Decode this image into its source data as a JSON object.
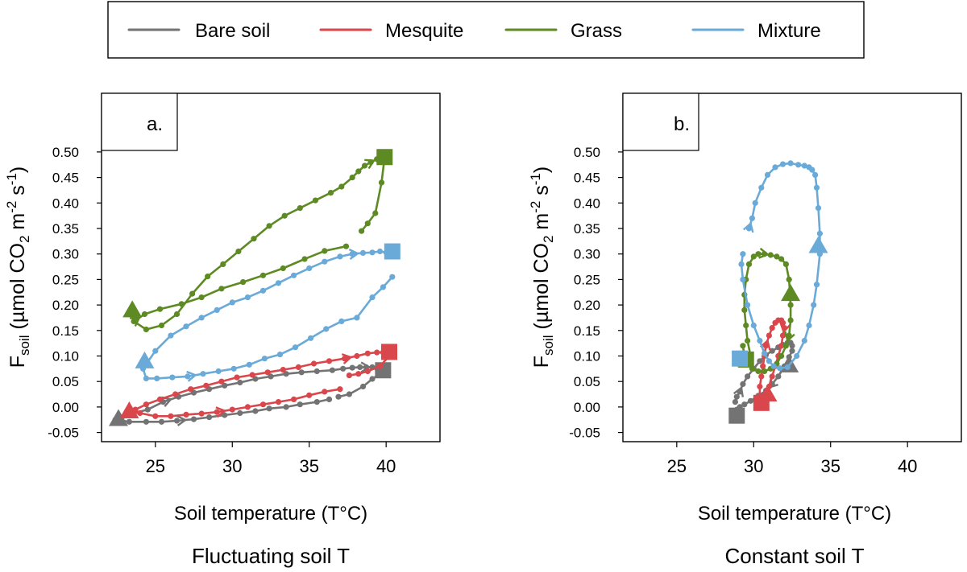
{
  "legend": [
    {
      "label": "Bare soil",
      "color": "#737373"
    },
    {
      "label": "Mesquite",
      "color": "#d9464b"
    },
    {
      "label": "Grass",
      "color": "#5d8a22"
    },
    {
      "label": "Mixture",
      "color": "#6aaad8"
    }
  ],
  "ylabel": {
    "main": "F",
    "sub": "soil",
    "unit_pre": " (µmol CO",
    "two": "2",
    "unit_m": " m",
    "exp_m": "-2",
    "unit_s": " s",
    "exp_s": "-1",
    "close": ")"
  },
  "chart_data": [
    {
      "type": "line",
      "panel_label": "a.",
      "caption": "Fluctuating soil T",
      "xlabel": "Soil temperature (T°C)",
      "xlim": [
        21.5,
        43.5
      ],
      "ylim": [
        -0.068,
        0.615
      ],
      "xticks": [
        "25",
        "30",
        "35",
        "40"
      ],
      "yticks": [
        "-0.05",
        "0.00",
        "0.05",
        "0.10",
        "0.15",
        "0.20",
        "0.25",
        "0.30",
        "0.35",
        "0.40",
        "0.45",
        "0.50"
      ],
      "series": [
        {
          "name": "Bare soil",
          "x": [
            36.3,
            35.5,
            34.4,
            33.5,
            32.4,
            31.5,
            30.5,
            29.5,
            28.5,
            27.5,
            26.4,
            25.4,
            24.4,
            23.3,
            22.4,
            22.8,
            23.6,
            24.5,
            25.5,
            26.5,
            27.5,
            28.5,
            29.5,
            30.5,
            31.5,
            32.5,
            33.5,
            34.5,
            35.5,
            36.5,
            37.2,
            37.8,
            38.3,
            38.7,
            39.1,
            39.4,
            39.7,
            39.9,
            39.6,
            39.1,
            38.5,
            37.6,
            36.9
          ],
          "y": [
            0.015,
            0.01,
            0.005,
            0.0,
            -0.003,
            -0.008,
            -0.012,
            -0.016,
            -0.02,
            -0.024,
            -0.027,
            -0.029,
            -0.029,
            -0.029,
            -0.025,
            -0.022,
            -0.012,
            -0.005,
            0.01,
            0.02,
            0.028,
            0.035,
            0.042,
            0.048,
            0.055,
            0.06,
            0.065,
            0.068,
            0.07,
            0.072,
            0.075,
            0.077,
            0.078,
            0.078,
            0.078,
            0.076,
            0.074,
            0.072,
            0.065,
            0.055,
            0.04,
            0.025,
            0.02
          ],
          "arrows": [
            {
              "i": 9,
              "dir": "back"
            },
            {
              "i": 18,
              "dir": "fwd"
            },
            {
              "i": 33,
              "dir": "fwd"
            }
          ],
          "start_marker": {
            "shape": "triangle",
            "x": 22.6,
            "y": -0.023
          },
          "end_marker": {
            "shape": "square",
            "x": 39.8,
            "y": 0.072
          }
        },
        {
          "name": "Mesquite",
          "x": [
            37.0,
            36.0,
            35.0,
            34.0,
            33.0,
            32.0,
            31.0,
            30.0,
            29.0,
            28.0,
            27.0,
            26.0,
            25.0,
            24.0,
            23.3,
            23.7,
            24.4,
            25.3,
            26.3,
            27.3,
            28.3,
            29.3,
            30.3,
            31.3,
            32.3,
            33.3,
            34.3,
            35.3,
            36.3,
            37.3,
            38.1,
            38.8,
            39.4,
            39.8,
            40.2,
            40.2,
            39.6,
            38.8,
            38.2,
            37.6
          ],
          "y": [
            0.035,
            0.03,
            0.023,
            0.015,
            0.01,
            0.005,
            0.0,
            -0.005,
            -0.01,
            -0.013,
            -0.015,
            -0.018,
            -0.018,
            -0.012,
            -0.01,
            -0.005,
            0.005,
            0.015,
            0.025,
            0.035,
            0.042,
            0.05,
            0.058,
            0.063,
            0.068,
            0.073,
            0.078,
            0.085,
            0.09,
            0.095,
            0.1,
            0.105,
            0.107,
            0.107,
            0.11,
            0.1,
            0.08,
            0.07,
            0.065,
            0.062
          ],
          "arrows": [
            {
              "i": 7,
              "dir": "back"
            },
            {
              "i": 29,
              "dir": "fwd"
            }
          ],
          "start_marker": {
            "shape": "triangle",
            "x": 23.3,
            "y": -0.008
          },
          "end_marker": {
            "shape": "square",
            "x": 40.2,
            "y": 0.108
          }
        },
        {
          "name": "Grass",
          "x": [
            37.4,
            36.0,
            34.7,
            33.3,
            32.0,
            30.7,
            29.3,
            28.0,
            26.7,
            25.3,
            24.3,
            23.6,
            24.4,
            25.4,
            26.4,
            27.4,
            28.4,
            29.4,
            30.4,
            31.4,
            32.4,
            33.4,
            34.4,
            35.4,
            36.4,
            37.1,
            37.8,
            38.2,
            38.6,
            39.0,
            39.4,
            39.6,
            39.8,
            39.9,
            39.7,
            39.3,
            38.8,
            38.4
          ],
          "y": [
            0.315,
            0.306,
            0.29,
            0.272,
            0.258,
            0.245,
            0.232,
            0.215,
            0.202,
            0.192,
            0.182,
            0.168,
            0.152,
            0.16,
            0.182,
            0.222,
            0.256,
            0.28,
            0.305,
            0.33,
            0.355,
            0.375,
            0.39,
            0.405,
            0.42,
            0.432,
            0.45,
            0.462,
            0.473,
            0.48,
            0.486,
            0.489,
            0.49,
            0.49,
            0.44,
            0.38,
            0.36,
            0.345
          ],
          "arrows": [
            {
              "i": 10,
              "dir": "back"
            },
            {
              "i": 29,
              "dir": "fwd"
            }
          ],
          "start_marker": {
            "shape": "triangle",
            "x": 23.5,
            "y": 0.19
          },
          "end_marker": {
            "shape": "square",
            "x": 39.9,
            "y": 0.49
          }
        },
        {
          "name": "Mixture",
          "x": [
            40.4,
            39.8,
            39.1,
            38.1,
            37.1,
            36.1,
            35.1,
            34.1,
            33.1,
            32.1,
            31.1,
            30.1,
            29.1,
            28.1,
            27.1,
            26.1,
            25.1,
            24.4,
            24.2,
            25.0,
            26.0,
            27.0,
            28.0,
            29.0,
            30.0,
            31.0,
            32.0,
            33.0,
            34.0,
            35.0,
            36.0,
            37.0,
            37.8,
            38.5,
            39.1,
            39.6,
            40.0,
            40.3,
            40.4
          ],
          "y": [
            0.255,
            0.235,
            0.215,
            0.175,
            0.168,
            0.153,
            0.135,
            0.117,
            0.103,
            0.095,
            0.083,
            0.075,
            0.07,
            0.065,
            0.06,
            0.058,
            0.056,
            0.056,
            0.075,
            0.11,
            0.14,
            0.158,
            0.175,
            0.19,
            0.205,
            0.215,
            0.228,
            0.243,
            0.258,
            0.272,
            0.285,
            0.295,
            0.3,
            0.302,
            0.303,
            0.305,
            0.303,
            0.305,
            0.305
          ],
          "arrows": [
            {
              "i": 13,
              "dir": "back"
            },
            {
              "i": 32,
              "dir": "fwd"
            }
          ],
          "start_marker": {
            "shape": "triangle",
            "x": 24.3,
            "y": 0.09
          },
          "end_marker": {
            "shape": "square",
            "x": 40.4,
            "y": 0.305
          }
        }
      ]
    },
    {
      "type": "line",
      "panel_label": "b.",
      "caption": "Constant soil T",
      "xlabel": "Soil temperature (T°C)",
      "xlim": [
        21.5,
        43.5
      ],
      "ylim": [
        -0.068,
        0.615
      ],
      "xticks": [
        "25",
        "30",
        "35",
        "40"
      ],
      "yticks": [
        "-0.05",
        "0.00",
        "0.05",
        "0.10",
        "0.15",
        "0.20",
        "0.25",
        "0.30",
        "0.35",
        "0.40",
        "0.45",
        "0.50"
      ],
      "series": [
        {
          "name": "Bare soil",
          "x": [
            28.8,
            28.9,
            29.1,
            29.3,
            29.6,
            30.0,
            30.4,
            30.8,
            31.2,
            31.6,
            31.9,
            32.2,
            32.4,
            32.5,
            32.5,
            32.3,
            32.0,
            31.6,
            31.2,
            30.8,
            30.3,
            29.8,
            29.4,
            29.1,
            28.9,
            28.7,
            28.6,
            28.6,
            28.8,
            29.0,
            29.2
          ],
          "y": [
            0.01,
            0.02,
            0.03,
            0.045,
            0.06,
            0.075,
            0.09,
            0.102,
            0.11,
            0.117,
            0.122,
            0.126,
            0.126,
            0.12,
            0.11,
            0.098,
            0.08,
            0.06,
            0.045,
            0.032,
            0.022,
            0.012,
            0.005,
            0.0,
            -0.005,
            -0.01,
            -0.015,
            -0.015,
            -0.012,
            -0.015,
            -0.018
          ],
          "arrows": [
            {
              "i": 2,
              "dir": "fwd"
            },
            {
              "i": 18,
              "dir": "fwd"
            }
          ],
          "start_marker": {
            "shape": "triangle",
            "x": 32.3,
            "y": 0.082
          },
          "end_marker": {
            "shape": "square",
            "x": 28.9,
            "y": -0.017
          }
        },
        {
          "name": "Mesquite",
          "x": [
            30.4,
            30.4,
            30.5,
            30.6,
            30.7,
            30.8,
            31.0,
            31.2,
            31.4,
            31.6,
            31.8,
            31.9,
            32.0,
            31.9,
            31.8,
            31.6,
            31.4,
            31.2,
            31.0,
            30.8,
            30.6,
            30.5,
            30.4,
            30.4,
            30.5
          ],
          "y": [
            0.02,
            0.04,
            0.06,
            0.08,
            0.1,
            0.12,
            0.14,
            0.155,
            0.165,
            0.17,
            0.17,
            0.165,
            0.155,
            0.14,
            0.12,
            0.1,
            0.08,
            0.06,
            0.04,
            0.025,
            0.015,
            0.008,
            0.005,
            0.01,
            0.02
          ],
          "arrows": [
            {
              "i": 5,
              "dir": "fwd"
            },
            {
              "i": 12,
              "dir": "fwd"
            }
          ],
          "start_marker": {
            "shape": "triangle",
            "x": 30.9,
            "y": 0.025
          },
          "end_marker": {
            "shape": "square",
            "x": 30.5,
            "y": 0.008
          }
        },
        {
          "name": "Grass",
          "x": [
            29.8,
            29.6,
            29.5,
            29.4,
            29.4,
            29.5,
            29.7,
            30.0,
            30.3,
            30.7,
            31.1,
            31.5,
            31.8,
            32.1,
            32.3,
            32.4,
            32.4,
            32.3,
            32.1,
            31.8,
            31.5,
            31.1,
            30.7,
            30.3,
            29.9,
            29.6,
            29.4,
            29.3
          ],
          "y": [
            0.1,
            0.13,
            0.16,
            0.19,
            0.22,
            0.25,
            0.28,
            0.295,
            0.3,
            0.3,
            0.298,
            0.295,
            0.29,
            0.28,
            0.25,
            0.2,
            0.17,
            0.14,
            0.12,
            0.1,
            0.085,
            0.075,
            0.07,
            0.07,
            0.075,
            0.085,
            0.1,
            0.12
          ],
          "arrows": [
            {
              "i": 9,
              "dir": "fwd"
            },
            {
              "i": 17,
              "dir": "fwd"
            }
          ],
          "start_marker": {
            "shape": "triangle",
            "x": 32.4,
            "y": 0.222
          },
          "end_marker": {
            "shape": "square",
            "x": 29.5,
            "y": 0.093
          }
        },
        {
          "name": "Mixture",
          "x": [
            29.3,
            29.2,
            29.3,
            29.6,
            30.0,
            30.4,
            30.7,
            31.0,
            31.3,
            31.7,
            32.2,
            32.8,
            33.3,
            33.6,
            33.9,
            34.1,
            34.3,
            34.3,
            34.2,
            34.1,
            34.0,
            33.8,
            33.6,
            33.3,
            32.9,
            32.4,
            31.9,
            31.4,
            30.9,
            30.5,
            30.1,
            29.9,
            29.7
          ],
          "y": [
            0.3,
            0.28,
            0.25,
            0.2,
            0.16,
            0.13,
            0.105,
            0.09,
            0.08,
            0.076,
            0.078,
            0.1,
            0.13,
            0.16,
            0.2,
            0.24,
            0.3,
            0.34,
            0.39,
            0.43,
            0.455,
            0.465,
            0.47,
            0.473,
            0.475,
            0.478,
            0.476,
            0.47,
            0.455,
            0.43,
            0.4,
            0.37,
            0.35
          ],
          "arrows": [
            {
              "i": 16,
              "dir": "fwd"
            },
            {
              "i": 31,
              "dir": "back"
            }
          ],
          "start_marker": {
            "shape": "triangle",
            "x": 34.2,
            "y": 0.316
          },
          "end_marker": {
            "shape": "square",
            "x": 29.1,
            "y": 0.095
          }
        }
      ]
    }
  ]
}
